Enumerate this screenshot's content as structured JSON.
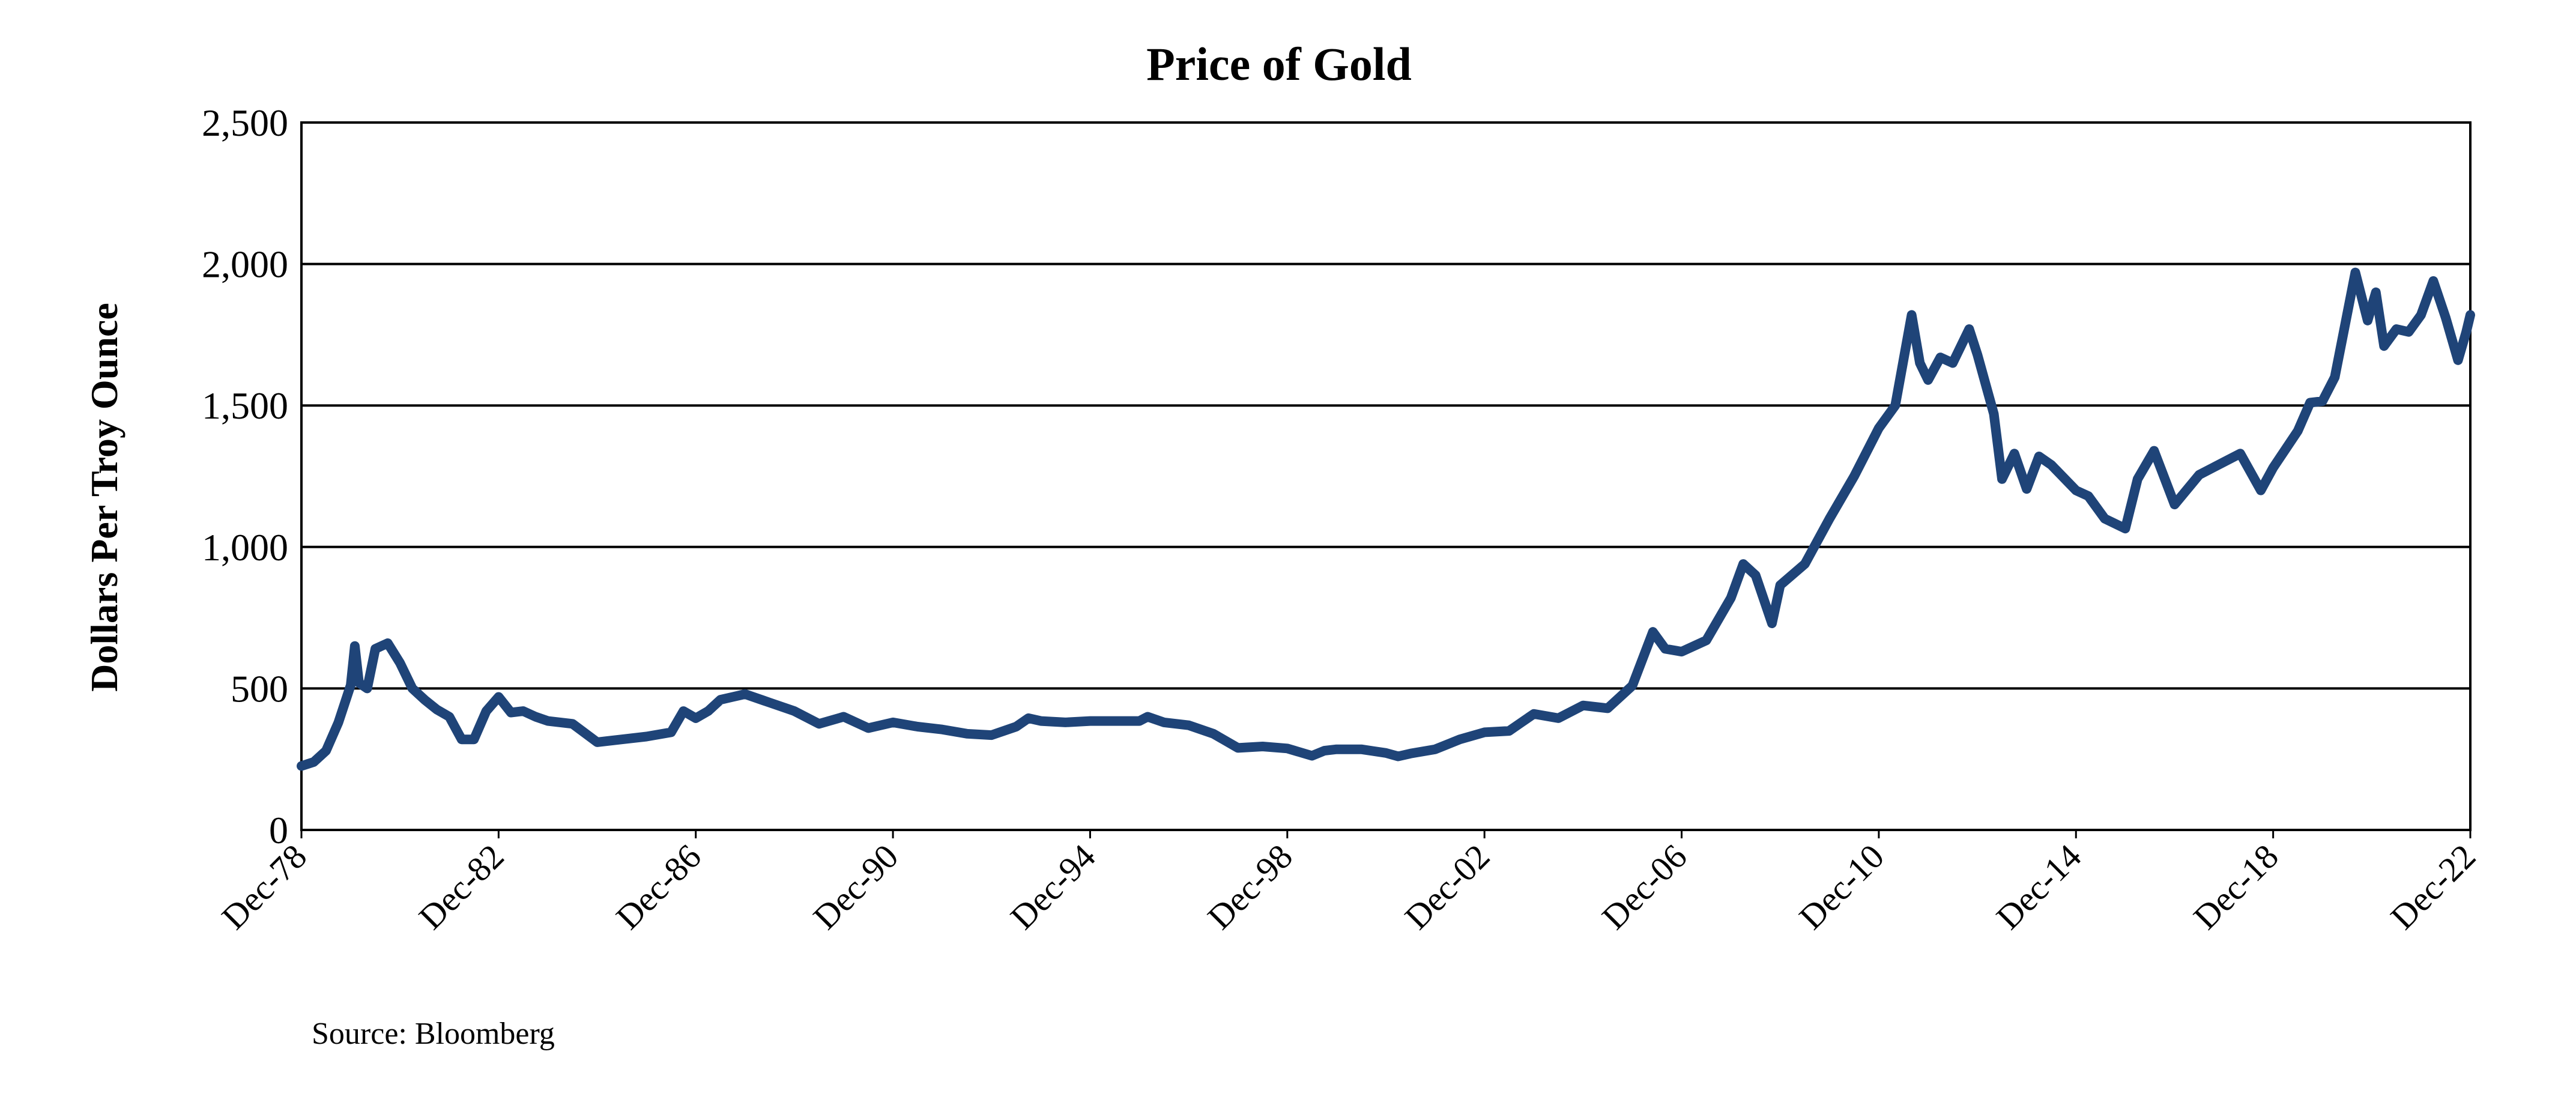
{
  "chart_data": {
    "type": "line",
    "title": "Price of Gold",
    "xlabel": "",
    "ylabel": "Dollars Per Troy Ounce",
    "ylim": [
      0,
      2500
    ],
    "xlim": [
      "1978-12",
      "2022-12"
    ],
    "yticks": [
      0,
      500,
      1000,
      1500,
      2000,
      2500
    ],
    "ytick_labels": [
      "0",
      "500",
      "1,000",
      "1,500",
      "2,000",
      "2,500"
    ],
    "xtick_labels": [
      "Dec-78",
      "Dec-82",
      "Dec-86",
      "Dec-90",
      "Dec-94",
      "Dec-98",
      "Dec-02",
      "Dec-06",
      "Dec-10",
      "Dec-14",
      "Dec-18",
      "Dec-22"
    ],
    "grid": true,
    "line_color": "#1f4478",
    "source": "Source: Bloomberg",
    "series": [
      {
        "x": [
          "1978-12",
          "1979-03",
          "1979-06",
          "1979-09",
          "1979-12",
          "1980-01",
          "1980-02",
          "1980-04",
          "1980-06",
          "1980-09",
          "1980-12",
          "1981-03",
          "1981-06",
          "1981-09",
          "1981-12",
          "1982-03",
          "1982-06",
          "1982-09",
          "1982-12",
          "1983-03",
          "1983-06",
          "1983-09",
          "1983-12",
          "1984-06",
          "1984-12",
          "1985-06",
          "1985-12",
          "1986-06",
          "1986-09",
          "1986-12",
          "1987-03",
          "1987-06",
          "1987-09",
          "1987-12",
          "1988-06",
          "1988-12",
          "1989-06",
          "1989-12",
          "1990-06",
          "1990-12",
          "1991-06",
          "1991-12",
          "1992-06",
          "1992-12",
          "1993-06",
          "1993-09",
          "1993-12",
          "1994-06",
          "1994-12",
          "1995-06",
          "1995-12",
          "1996-02",
          "1996-06",
          "1996-12",
          "1997-06",
          "1997-12",
          "1998-06",
          "1998-12",
          "1999-06",
          "1999-09",
          "1999-12",
          "2000-06",
          "2000-12",
          "2001-03",
          "2001-06",
          "2001-12",
          "2002-06",
          "2002-12",
          "2003-06",
          "2003-12",
          "2004-06",
          "2004-12",
          "2005-06",
          "2005-12",
          "2006-05",
          "2006-08",
          "2006-12",
          "2007-06",
          "2007-12",
          "2008-03",
          "2008-06",
          "2008-10",
          "2008-12",
          "2009-06",
          "2009-12",
          "2010-06",
          "2010-12",
          "2011-04",
          "2011-08",
          "2011-10",
          "2011-12",
          "2012-03",
          "2012-06",
          "2012-10",
          "2012-12",
          "2013-04",
          "2013-06",
          "2013-09",
          "2013-12",
          "2014-03",
          "2014-06",
          "2014-12",
          "2015-03",
          "2015-07",
          "2015-12",
          "2016-03",
          "2016-07",
          "2016-12",
          "2017-06",
          "2017-12",
          "2018-04",
          "2018-09",
          "2018-12",
          "2019-06",
          "2019-09",
          "2019-12",
          "2020-03",
          "2020-08",
          "2020-11",
          "2021-01",
          "2021-03",
          "2021-06",
          "2021-09",
          "2021-12",
          "2022-03",
          "2022-06",
          "2022-09",
          "2022-11",
          "2022-12"
        ],
        "y": [
          226,
          240,
          280,
          380,
          512,
          650,
          520,
          500,
          640,
          660,
          590,
          500,
          460,
          425,
          400,
          320,
          320,
          420,
          470,
          415,
          420,
          400,
          385,
          375,
          310,
          320,
          330,
          345,
          420,
          395,
          420,
          460,
          470,
          480,
          450,
          420,
          375,
          400,
          360,
          380,
          365,
          355,
          340,
          335,
          365,
          395,
          385,
          380,
          385,
          385,
          385,
          400,
          380,
          370,
          340,
          290,
          295,
          288,
          262,
          280,
          285,
          285,
          272,
          260,
          270,
          285,
          320,
          345,
          350,
          410,
          395,
          440,
          430,
          510,
          700,
          640,
          630,
          670,
          820,
          940,
          900,
          730,
          865,
          940,
          1100,
          1250,
          1420,
          1500,
          1820,
          1650,
          1590,
          1670,
          1650,
          1770,
          1680,
          1470,
          1240,
          1330,
          1205,
          1320,
          1290,
          1200,
          1180,
          1100,
          1065,
          1240,
          1340,
          1150,
          1255,
          1300,
          1330,
          1200,
          1280,
          1410,
          1510,
          1515,
          1600,
          1970,
          1800,
          1900,
          1710,
          1770,
          1760,
          1820,
          1940,
          1810,
          1660,
          1760,
          1820
        ]
      }
    ]
  }
}
